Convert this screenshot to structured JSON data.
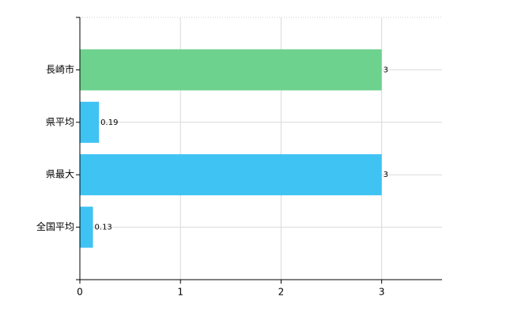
{
  "chart_data": {
    "type": "barh",
    "categories": [
      "長崎市",
      "県平均",
      "県最大",
      "全国平均"
    ],
    "values": [
      3,
      0.19,
      3,
      0.13
    ],
    "colors": [
      "#6dd28e",
      "#3ec3f3",
      "#3ec3f3",
      "#3ec3f3"
    ],
    "xlim": [
      0,
      3.6
    ],
    "xticks": [
      0,
      1,
      2,
      3
    ],
    "grid": true
  }
}
